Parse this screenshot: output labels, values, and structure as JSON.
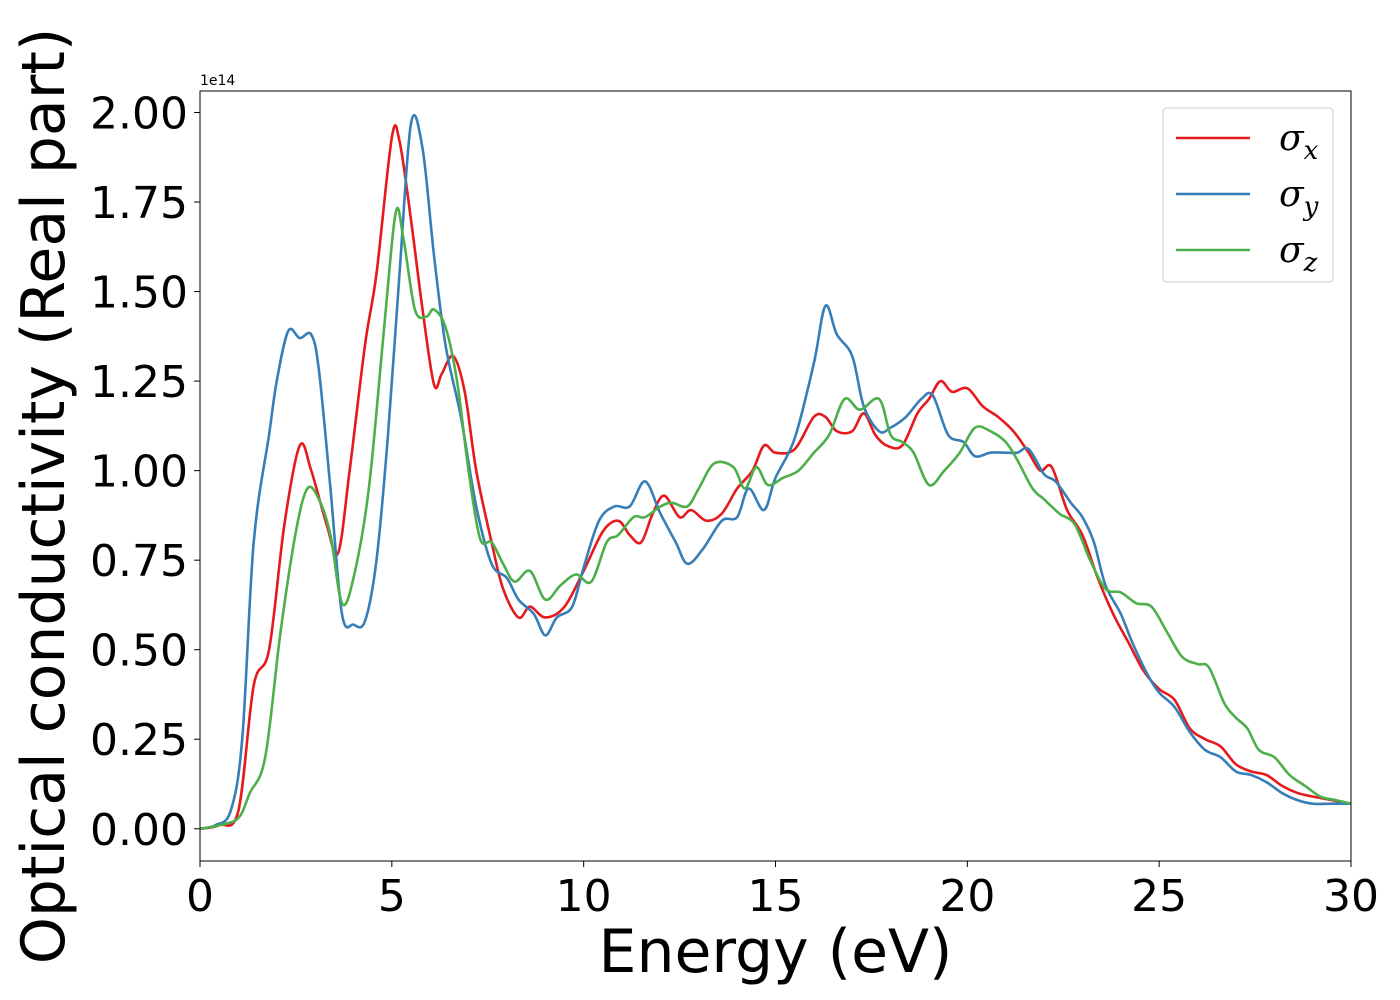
{
  "chart_data": {
    "type": "line",
    "title": "",
    "xlabel": "Energy (eV)",
    "ylabel": "Optical conductivity (Real part)",
    "offset_text": "1e14",
    "xlim": [
      0,
      30
    ],
    "ylim": [
      -0.09,
      2.06
    ],
    "xticks": [
      0,
      5,
      10,
      15,
      20,
      25,
      30
    ],
    "xtick_labels": [
      "0",
      "5",
      "10",
      "15",
      "20",
      "25",
      "30"
    ],
    "yticks": [
      0.0,
      0.25,
      0.5,
      0.75,
      1.0,
      1.25,
      1.5,
      1.75,
      2.0
    ],
    "ytick_labels": [
      "0.00",
      "0.25",
      "0.50",
      "0.75",
      "1.00",
      "1.25",
      "1.50",
      "1.75",
      "2.00"
    ],
    "grid": false,
    "legend_position": "top-right",
    "series": [
      {
        "name": "σx",
        "base": "σ",
        "sub": "x",
        "color": "#e41a1c",
        "points": [
          [
            0,
            0
          ],
          [
            0.5,
            0.01
          ],
          [
            1.0,
            0.05
          ],
          [
            1.4,
            0.4
          ],
          [
            1.8,
            0.5
          ],
          [
            2.2,
            0.85
          ],
          [
            2.6,
            1.07
          ],
          [
            2.9,
            1.0
          ],
          [
            3.3,
            0.85
          ],
          [
            3.6,
            0.77
          ],
          [
            3.9,
            1.0
          ],
          [
            4.3,
            1.35
          ],
          [
            4.6,
            1.55
          ],
          [
            5.0,
            1.93
          ],
          [
            5.2,
            1.92
          ],
          [
            5.5,
            1.7
          ],
          [
            5.8,
            1.45
          ],
          [
            6.1,
            1.24
          ],
          [
            6.3,
            1.27
          ],
          [
            6.6,
            1.32
          ],
          [
            6.9,
            1.22
          ],
          [
            7.2,
            1.0
          ],
          [
            7.6,
            0.8
          ],
          [
            7.9,
            0.67
          ],
          [
            8.3,
            0.59
          ],
          [
            8.6,
            0.62
          ],
          [
            9.0,
            0.59
          ],
          [
            9.5,
            0.62
          ],
          [
            10.0,
            0.72
          ],
          [
            10.5,
            0.83
          ],
          [
            10.9,
            0.86
          ],
          [
            11.2,
            0.82
          ],
          [
            11.5,
            0.8
          ],
          [
            11.8,
            0.88
          ],
          [
            12.1,
            0.93
          ],
          [
            12.5,
            0.87
          ],
          [
            12.8,
            0.89
          ],
          [
            13.2,
            0.86
          ],
          [
            13.6,
            0.88
          ],
          [
            14.0,
            0.95
          ],
          [
            14.4,
            1.0
          ],
          [
            14.7,
            1.07
          ],
          [
            15.0,
            1.05
          ],
          [
            15.5,
            1.06
          ],
          [
            16.0,
            1.15
          ],
          [
            16.3,
            1.15
          ],
          [
            16.6,
            1.11
          ],
          [
            17.0,
            1.11
          ],
          [
            17.3,
            1.16
          ],
          [
            17.6,
            1.1
          ],
          [
            17.9,
            1.07
          ],
          [
            18.3,
            1.07
          ],
          [
            18.7,
            1.16
          ],
          [
            19.0,
            1.2
          ],
          [
            19.3,
            1.25
          ],
          [
            19.6,
            1.22
          ],
          [
            20.0,
            1.23
          ],
          [
            20.4,
            1.18
          ],
          [
            20.8,
            1.15
          ],
          [
            21.2,
            1.11
          ],
          [
            21.6,
            1.05
          ],
          [
            21.9,
            1.0
          ],
          [
            22.2,
            1.01
          ],
          [
            22.6,
            0.89
          ],
          [
            23.0,
            0.82
          ],
          [
            23.4,
            0.7
          ],
          [
            23.8,
            0.6
          ],
          [
            24.2,
            0.52
          ],
          [
            24.6,
            0.44
          ],
          [
            25.0,
            0.39
          ],
          [
            25.4,
            0.36
          ],
          [
            25.8,
            0.28
          ],
          [
            26.2,
            0.25
          ],
          [
            26.6,
            0.23
          ],
          [
            27.0,
            0.18
          ],
          [
            27.4,
            0.16
          ],
          [
            27.8,
            0.15
          ],
          [
            28.2,
            0.12
          ],
          [
            28.6,
            0.1
          ],
          [
            29.0,
            0.09
          ],
          [
            29.5,
            0.08
          ],
          [
            30.0,
            0.07
          ]
        ]
      },
      {
        "name": "σy",
        "base": "σ",
        "sub": "y",
        "color": "#377eb8",
        "points": [
          [
            0,
            0
          ],
          [
            0.4,
            0.01
          ],
          [
            0.8,
            0.05
          ],
          [
            1.1,
            0.25
          ],
          [
            1.4,
            0.8
          ],
          [
            1.8,
            1.1
          ],
          [
            2.0,
            1.25
          ],
          [
            2.3,
            1.39
          ],
          [
            2.6,
            1.37
          ],
          [
            2.9,
            1.38
          ],
          [
            3.1,
            1.28
          ],
          [
            3.4,
            0.95
          ],
          [
            3.7,
            0.6
          ],
          [
            4.0,
            0.57
          ],
          [
            4.3,
            0.58
          ],
          [
            4.6,
            0.75
          ],
          [
            4.9,
            1.1
          ],
          [
            5.2,
            1.55
          ],
          [
            5.5,
            1.97
          ],
          [
            5.8,
            1.9
          ],
          [
            6.1,
            1.6
          ],
          [
            6.4,
            1.35
          ],
          [
            6.8,
            1.15
          ],
          [
            7.2,
            0.9
          ],
          [
            7.6,
            0.74
          ],
          [
            8.0,
            0.7
          ],
          [
            8.3,
            0.64
          ],
          [
            8.7,
            0.6
          ],
          [
            9.0,
            0.54
          ],
          [
            9.3,
            0.59
          ],
          [
            9.7,
            0.62
          ],
          [
            10.0,
            0.73
          ],
          [
            10.4,
            0.86
          ],
          [
            10.8,
            0.9
          ],
          [
            11.2,
            0.9
          ],
          [
            11.6,
            0.97
          ],
          [
            12.0,
            0.88
          ],
          [
            12.4,
            0.8
          ],
          [
            12.7,
            0.74
          ],
          [
            13.1,
            0.78
          ],
          [
            13.6,
            0.86
          ],
          [
            14.0,
            0.87
          ],
          [
            14.3,
            0.95
          ],
          [
            14.7,
            0.89
          ],
          [
            15.0,
            0.98
          ],
          [
            15.5,
            1.09
          ],
          [
            16.0,
            1.3
          ],
          [
            16.3,
            1.46
          ],
          [
            16.6,
            1.38
          ],
          [
            17.0,
            1.32
          ],
          [
            17.3,
            1.18
          ],
          [
            17.7,
            1.11
          ],
          [
            18.0,
            1.12
          ],
          [
            18.4,
            1.15
          ],
          [
            18.8,
            1.2
          ],
          [
            19.1,
            1.21
          ],
          [
            19.5,
            1.1
          ],
          [
            19.9,
            1.08
          ],
          [
            20.2,
            1.04
          ],
          [
            20.6,
            1.05
          ],
          [
            21.0,
            1.05
          ],
          [
            21.3,
            1.05
          ],
          [
            21.6,
            1.06
          ],
          [
            22.0,
            0.99
          ],
          [
            22.3,
            0.97
          ],
          [
            22.7,
            0.91
          ],
          [
            23.0,
            0.87
          ],
          [
            23.3,
            0.8
          ],
          [
            23.6,
            0.68
          ],
          [
            24.0,
            0.6
          ],
          [
            24.3,
            0.52
          ],
          [
            24.7,
            0.43
          ],
          [
            25.0,
            0.38
          ],
          [
            25.4,
            0.34
          ],
          [
            25.8,
            0.27
          ],
          [
            26.2,
            0.22
          ],
          [
            26.6,
            0.2
          ],
          [
            27.0,
            0.16
          ],
          [
            27.4,
            0.15
          ],
          [
            27.8,
            0.13
          ],
          [
            28.2,
            0.1
          ],
          [
            28.6,
            0.08
          ],
          [
            29.0,
            0.07
          ],
          [
            29.5,
            0.07
          ],
          [
            30.0,
            0.07
          ]
        ]
      },
      {
        "name": "σz",
        "base": "σ",
        "sub": "z",
        "color": "#4daf4a",
        "points": [
          [
            0,
            0
          ],
          [
            0.5,
            0.01
          ],
          [
            1.0,
            0.03
          ],
          [
            1.3,
            0.1
          ],
          [
            1.7,
            0.2
          ],
          [
            2.1,
            0.55
          ],
          [
            2.5,
            0.83
          ],
          [
            2.8,
            0.95
          ],
          [
            3.1,
            0.92
          ],
          [
            3.4,
            0.82
          ],
          [
            3.7,
            0.63
          ],
          [
            4.0,
            0.7
          ],
          [
            4.4,
            0.95
          ],
          [
            4.8,
            1.4
          ],
          [
            5.1,
            1.72
          ],
          [
            5.3,
            1.65
          ],
          [
            5.6,
            1.45
          ],
          [
            5.9,
            1.43
          ],
          [
            6.1,
            1.45
          ],
          [
            6.4,
            1.4
          ],
          [
            6.7,
            1.25
          ],
          [
            7.0,
            1.0
          ],
          [
            7.3,
            0.81
          ],
          [
            7.6,
            0.8
          ],
          [
            7.9,
            0.74
          ],
          [
            8.2,
            0.69
          ],
          [
            8.6,
            0.72
          ],
          [
            9.0,
            0.64
          ],
          [
            9.4,
            0.68
          ],
          [
            9.8,
            0.71
          ],
          [
            10.2,
            0.69
          ],
          [
            10.6,
            0.8
          ],
          [
            10.9,
            0.82
          ],
          [
            11.3,
            0.87
          ],
          [
            11.6,
            0.87
          ],
          [
            12.0,
            0.9
          ],
          [
            12.3,
            0.91
          ],
          [
            12.7,
            0.9
          ],
          [
            13.0,
            0.95
          ],
          [
            13.4,
            1.02
          ],
          [
            13.9,
            1.01
          ],
          [
            14.2,
            0.95
          ],
          [
            14.5,
            1.01
          ],
          [
            14.8,
            0.96
          ],
          [
            15.2,
            0.98
          ],
          [
            15.6,
            1.0
          ],
          [
            16.0,
            1.05
          ],
          [
            16.4,
            1.1
          ],
          [
            16.8,
            1.2
          ],
          [
            17.2,
            1.17
          ],
          [
            17.7,
            1.2
          ],
          [
            18.0,
            1.1
          ],
          [
            18.3,
            1.08
          ],
          [
            18.6,
            1.05
          ],
          [
            19.0,
            0.96
          ],
          [
            19.4,
            1.0
          ],
          [
            19.8,
            1.05
          ],
          [
            20.2,
            1.12
          ],
          [
            20.6,
            1.11
          ],
          [
            21.0,
            1.08
          ],
          [
            21.3,
            1.03
          ],
          [
            21.7,
            0.95
          ],
          [
            22.0,
            0.92
          ],
          [
            22.4,
            0.88
          ],
          [
            22.8,
            0.85
          ],
          [
            23.2,
            0.75
          ],
          [
            23.6,
            0.67
          ],
          [
            24.0,
            0.66
          ],
          [
            24.4,
            0.63
          ],
          [
            24.8,
            0.62
          ],
          [
            25.2,
            0.55
          ],
          [
            25.6,
            0.48
          ],
          [
            26.0,
            0.46
          ],
          [
            26.3,
            0.45
          ],
          [
            26.7,
            0.35
          ],
          [
            27.0,
            0.31
          ],
          [
            27.3,
            0.28
          ],
          [
            27.6,
            0.22
          ],
          [
            28.0,
            0.2
          ],
          [
            28.4,
            0.15
          ],
          [
            28.8,
            0.12
          ],
          [
            29.2,
            0.09
          ],
          [
            29.6,
            0.08
          ],
          [
            30.0,
            0.07
          ]
        ]
      }
    ]
  }
}
